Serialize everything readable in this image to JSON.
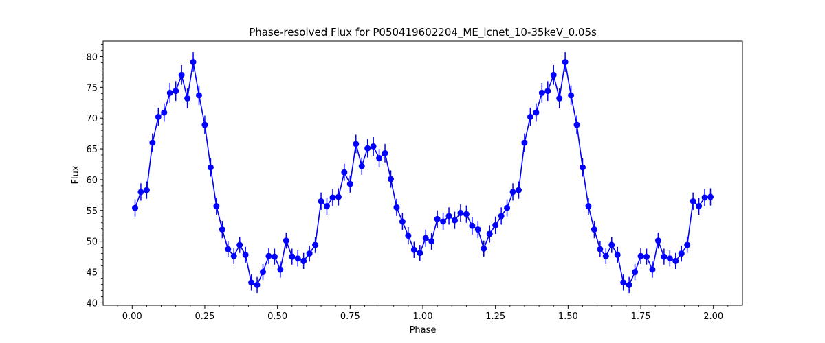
{
  "chart_data": {
    "type": "line",
    "title": "Phase-resolved Flux for P050419602204_ME_lcnet_10-35keV_0.05s",
    "xlabel": "Phase",
    "ylabel": "Flux",
    "xlim": [
      -0.1,
      2.1
    ],
    "ylim": [
      39.6,
      82.5
    ],
    "x_ticks": [
      "0.00",
      "0.25",
      "0.50",
      "0.75",
      "1.00",
      "1.25",
      "1.50",
      "1.75",
      "2.00"
    ],
    "y_ticks": [
      "40",
      "45",
      "50",
      "55",
      "60",
      "65",
      "70",
      "75",
      "80"
    ],
    "grid": false,
    "legend": false,
    "color": "#0000ff",
    "series": [
      {
        "x": [
          0.01,
          0.03,
          0.05,
          0.07,
          0.09,
          0.11,
          0.13,
          0.15,
          0.17,
          0.19,
          0.21,
          0.23,
          0.25,
          0.27,
          0.29,
          0.31,
          0.33,
          0.35,
          0.37,
          0.39,
          0.41,
          0.43,
          0.45,
          0.47,
          0.49,
          0.51,
          0.53,
          0.55,
          0.57,
          0.59,
          0.61,
          0.63,
          0.65,
          0.67,
          0.69,
          0.71,
          0.73,
          0.75,
          0.77,
          0.79,
          0.81,
          0.83,
          0.85,
          0.87,
          0.89,
          0.91,
          0.93,
          0.95,
          0.97,
          0.99,
          1.01,
          1.03,
          1.05,
          1.07,
          1.09,
          1.11,
          1.13,
          1.15,
          1.17,
          1.19,
          1.21,
          1.23,
          1.25,
          1.27,
          1.29,
          1.31,
          1.33,
          1.35,
          1.37,
          1.39,
          1.41,
          1.43,
          1.45,
          1.47,
          1.49,
          1.51,
          1.53,
          1.55,
          1.57,
          1.59,
          1.61,
          1.63,
          1.65,
          1.67,
          1.69,
          1.71,
          1.73,
          1.75,
          1.77,
          1.79,
          1.81,
          1.83,
          1.85,
          1.87,
          1.89,
          1.91,
          1.93,
          1.95,
          1.97,
          1.99
        ],
        "y": [
          55.4,
          58.0,
          58.3,
          66.0,
          70.2,
          70.9,
          74.1,
          74.4,
          77.0,
          73.2,
          79.1,
          73.7,
          68.9,
          62.0,
          55.7,
          51.9,
          48.7,
          47.6,
          49.4,
          47.8,
          43.3,
          42.9,
          45.0,
          47.6,
          47.5,
          45.4,
          50.1,
          47.5,
          47.2,
          46.8,
          48.0,
          49.4,
          56.5,
          55.7,
          57.1,
          57.2,
          61.2,
          59.3,
          65.8,
          62.2,
          65.1,
          65.4,
          63.5,
          64.3,
          60.1,
          55.5,
          53.2,
          50.9,
          48.6,
          48.1,
          50.5,
          50.0,
          53.6,
          53.2,
          54.1,
          53.4,
          54.6,
          54.4,
          52.5,
          51.9,
          48.8,
          51.2,
          52.6,
          54.1,
          55.4,
          58.0,
          58.3,
          66.0,
          70.2,
          70.9,
          74.1,
          74.4,
          77.0,
          73.2,
          79.1,
          73.7,
          68.9,
          62.0,
          55.7,
          51.9,
          48.7,
          47.6,
          49.4,
          47.8,
          43.3,
          42.9,
          45.0,
          47.6,
          47.5,
          45.4,
          50.1,
          47.5,
          47.2,
          46.8,
          48.0,
          49.4,
          56.5,
          55.7,
          57.1,
          57.2
        ],
        "yerr": [
          1.4,
          1.4,
          1.4,
          1.5,
          1.5,
          1.5,
          1.6,
          1.6,
          1.6,
          1.6,
          1.6,
          1.6,
          1.5,
          1.5,
          1.4,
          1.4,
          1.3,
          1.3,
          1.3,
          1.3,
          1.3,
          1.3,
          1.3,
          1.3,
          1.3,
          1.3,
          1.3,
          1.3,
          1.3,
          1.3,
          1.3,
          1.3,
          1.4,
          1.4,
          1.4,
          1.4,
          1.4,
          1.4,
          1.5,
          1.4,
          1.5,
          1.5,
          1.5,
          1.5,
          1.4,
          1.4,
          1.4,
          1.4,
          1.3,
          1.3,
          1.4,
          1.4,
          1.4,
          1.4,
          1.4,
          1.4,
          1.4,
          1.4,
          1.4,
          1.4,
          1.3,
          1.4,
          1.4,
          1.4,
          1.4,
          1.4,
          1.4,
          1.5,
          1.5,
          1.5,
          1.6,
          1.6,
          1.6,
          1.6,
          1.6,
          1.6,
          1.5,
          1.5,
          1.4,
          1.4,
          1.3,
          1.3,
          1.3,
          1.3,
          1.3,
          1.3,
          1.3,
          1.3,
          1.3,
          1.3,
          1.3,
          1.3,
          1.3,
          1.3,
          1.3,
          1.3,
          1.4,
          1.4,
          1.4,
          1.4
        ]
      }
    ]
  }
}
